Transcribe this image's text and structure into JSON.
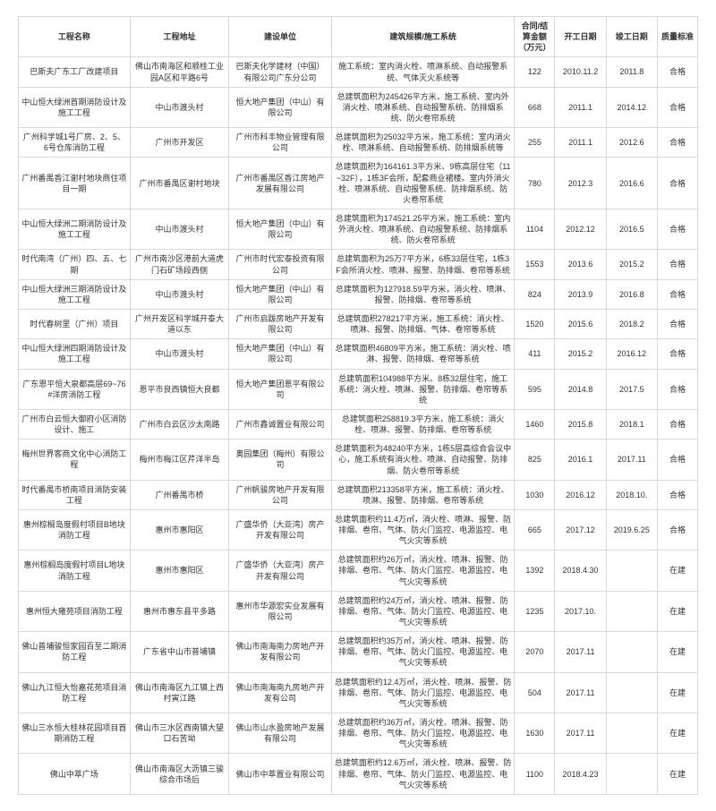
{
  "columns": [
    "工程名称",
    "工程地址",
    "建设单位",
    "建筑规模/施工系统",
    "合同/结算金额（万元）",
    "开工日期",
    "竣工日期",
    "质量标准"
  ],
  "rows": [
    [
      "巴斯夫广东工厂改建项目",
      "佛山市南海区和顺桂工业园A区和平路6号",
      "巴斯夫化学建材（中国）有限公司广东分公司",
      "施工系统：室内消火栓、喷淋系统、自动报警系统、气体灭火系统等",
      "122",
      "2010.11.2",
      "2011.8",
      "合格"
    ],
    [
      "中山恒大绿洲首期消防设计及施工工程",
      "中山市渡头村",
      "恒大地产集团（中山）有限公司",
      "总建筑面积为245426平方米，施工系统、室内外消火栓、喷淋系统、自动报警系统、防排烟系统、防火卷帘系统",
      "668",
      "2011.1",
      "2014.12",
      "合格"
    ],
    [
      "广州科学城1号厂房、2、5、6号仓库消防工程",
      "广州市开发区",
      "广州市科丰物业管理有限公司",
      "总建筑面积为25032平方米，施工系统：室内消火栓、喷淋系统、自动报警系统、防排烟系统等",
      "255",
      "2011.1",
      "2012.6",
      "合格"
    ],
    [
      "广州番禺香江谢村地块商住项目一期",
      "广州市番禺区谢村地块",
      "广州市番禺区香江房地产发展有限公司",
      "总建筑面积为164161.3平方米、9栋高层住宅（11~32F），1栋3F会所，配套商业裙楼。室内外消火栓、喷淋系统、自动报警系统、防排烟系统、防火卷帘系统",
      "780",
      "2012.3",
      "2016.6",
      "合格"
    ],
    [
      "中山恒大绿洲二期消防设计及施工工程",
      "中山市渡头村",
      "恒大地产集团（中山）有限公司",
      "总建筑面积为174521.25平方米，施工系统：室内外消火栓、喷淋系统、自动报警系统、防排烟系统、防火卷帘系统",
      "1104",
      "2012.12",
      "2016.5",
      "合格"
    ],
    [
      "时代南湾（广州）四、五、七期",
      "广州市南沙区港前大道虎门石矿场段西侧",
      "广州市时代宏泰投资有限公司",
      "总建筑面积为25万7平方米，6栋33层住宅，1栋3F会所消火栓、喷淋、报警、防排烟、卷帘等系统",
      "1553",
      "2013.6",
      "2015.2",
      "合格"
    ],
    [
      "中山恒大绿洲三期消防设计及施工工程",
      "中山市渡头村",
      "恒大地产集团（中山）有限公司",
      "总建筑面积为127918.59平方米，消火栓、喷淋、报警、防排烟、卷帘等系统",
      "824",
      "2013.9",
      "2016.8",
      "合格"
    ],
    [
      "时代春树里（广州）项目",
      "广州开发区科学城开泰大道以东",
      "广州市启跋房地产开发有限公司",
      "总建筑面积278217平方米，施工系统：消火栓、喷淋、报警、防排烟、气体、卷帘等系统",
      "1520",
      "2015.6",
      "2018.2",
      "合格"
    ],
    [
      "中山恒大绿洲四期消防设计及施工工程",
      "中山市渡头村",
      "恒大地产集团（中山）有限公司",
      "总建筑面积46809平方米，施工系统：消火栓、喷淋、报警、防排烟、卷帘等系统",
      "411",
      "2015.2",
      "2016.12",
      "合格"
    ],
    [
      "广东恩平恒大泉都高层69~76#洋房消防工程",
      "恩平市良西镇恒大良都",
      "恒大地产集团恩平有限公司",
      "总建筑面积104988平方米。8栋32层住宅，施工系统：消火栓、喷淋、报警、防排烟、卷帘等系统",
      "595",
      "2014.8",
      "2017.5",
      "合格"
    ],
    [
      "广州市白云恒大御府小区消防设计、施工",
      "广州市白云区沙太南路",
      "广州市鑫诚置业有限公司",
      "总建筑面积258819.3平方米，施工系统：消火栓、喷淋、报警、防排烟、卷帘等系统",
      "1460",
      "2015.8",
      "2018.1",
      "合格"
    ],
    [
      "梅州世界客商文化中心消防工程",
      "梅州市梅江区芹洋半岛",
      "奥园集团（梅州）有限公司",
      "总建筑面积为48240平方米，1栋5层高综合会议中心，施工系统有消火栓、喷淋、自动报警、防排烟、防火卷帘等系统",
      "825",
      "2016.1",
      "2017.11",
      "合格"
    ],
    [
      "时代番禺市桥南项目消防安装工程",
      "广州番禺市桥",
      "广州帆骏房地产开发有限公司",
      "总建筑面积213358平方米，施工系统：消火栓、喷淋、报警、防排烟、卷帘等系统",
      "1030",
      "2016.12",
      "2018.10.",
      "合格"
    ],
    [
      "惠州棕榈岛度假村项目B地块消防工程",
      "惠州市惠阳区",
      "广盛华侨（大亚湾）房产开发有限公司",
      "总建筑面积约11.4万㎡，消火栓、喷淋、报警、防排烟、卷帘、气体、防火门监控、电源监控、电气火灾等系统",
      "665",
      "2017.12",
      "2019.6.25",
      "合格"
    ],
    [
      "惠州棕榈岛度假村项目L地块消防工程",
      "惠州市惠阳区",
      "广盛华侨（大亚湾）房产开发有限公司",
      "总建筑面积约26万㎡，消火栓、喷淋、报警、防排烟、卷帘、气体、防火门监控、电源监控、电气火灾等系统",
      "1392",
      "2018.4.30",
      "",
      "在建"
    ],
    [
      "惠州恒大雍苑项目消防工程",
      "惠州市惠东县平多路",
      "惠州市华源宏实业发展有限公司",
      "总建筑面积约24万㎡，消火栓、喷淋、报警、防排烟、卷帘、气体、防火门监控、电源监控、电气火灾等系统",
      "1235",
      "2017.10.",
      "",
      "在建"
    ],
    [
      "佛山普埔骏恒家园百至二期消防工程",
      "广东省中山市普埔镇",
      "佛山市南海南力房地产开发有限公司",
      "总建筑面积约35万㎡，消火栓、喷淋、报警、防排烟、卷帘、气体、防火门监控、电源监控、电气火灾等系统",
      "2070",
      "2017.11",
      "",
      "在建"
    ],
    [
      "佛山九江恒大怡嘉花苑项目消防工程",
      "佛山市南海区九江镇上西村寅江路",
      "佛山市南海南九房地产开发有公司",
      "总建筑面积约12.4万㎡，消火栓、喷淋、报警、防排烟、卷帘、气体、防火门监控、电源监控、电气火灾等系统",
      "504",
      "2017.11",
      "",
      "在建"
    ],
    [
      "佛山三水恒大桂林花园项目首期消防工程",
      "佛山市三水区西南镇大望口石苦坳",
      "佛山市山水盈房地产发展有限公司",
      "总建筑面积约36万㎡，消火栓、喷淋、报警、防排烟、卷帘、气体、防火门监控、电源监控、电气火灾等系统",
      "1630",
      "2017.11",
      "",
      "在建"
    ],
    [
      "佛山中萃广场",
      "佛山市南海区大沥镇三骏综合市场后",
      "佛山市中萃置业有限公司",
      "总建筑面积约12.6万㎡，消火栓、喷淋、报警、防排烟、卷帘、气体、防火门监控、电源监控、电气火灾等系统",
      "1100",
      "2018.4.23",
      "",
      "在建"
    ]
  ]
}
